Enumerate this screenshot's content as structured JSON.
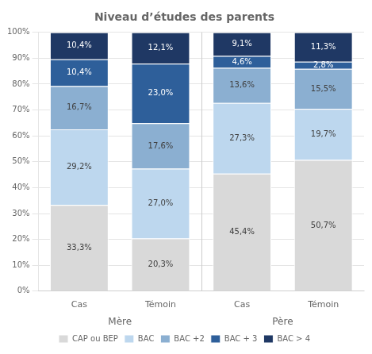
{
  "chart_data": {
    "type": "bar",
    "title": "Niveau d’études des parents",
    "categories": [
      "Cas",
      "Témoin",
      "Cas",
      "Témoin"
    ],
    "annotations": [
      "Mère",
      "Père"
    ],
    "series": [
      {
        "name": "CAP ou BEP",
        "color": "#d9d9d9",
        "values": [
          33.3,
          20.3,
          45.4,
          50.7
        ],
        "value_labels": [
          "33,3%",
          "20,3%",
          "45,4%",
          "50,7%"
        ]
      },
      {
        "name": "BAC",
        "color": "#bdd7ee",
        "values": [
          29.2,
          27.0,
          27.3,
          19.7
        ],
        "value_labels": [
          "29,2%",
          "27,0%",
          "27,3%",
          "19,7%"
        ]
      },
      {
        "name": "BAC +2",
        "color": "#8bafd1",
        "values": [
          16.7,
          17.6,
          13.6,
          15.5
        ],
        "value_labels": [
          "16,7%",
          "17,6%",
          "13,6%",
          "15,5%"
        ]
      },
      {
        "name": "BAC + 3",
        "color": "#2e5f9a",
        "values": [
          10.4,
          23.0,
          4.6,
          2.8
        ],
        "value_labels": [
          "10,4%",
          "23,0%",
          "4,6%",
          "2,8%"
        ]
      },
      {
        "name": "BAC > 4",
        "color": "#1f3864",
        "values": [
          10.4,
          12.1,
          9.1,
          11.3
        ],
        "value_labels": [
          "10,4%",
          "12,1%",
          "9,1%",
          "11,3%"
        ]
      }
    ],
    "stacked": true,
    "data_labels": true,
    "ylim": [
      0,
      100
    ],
    "yticks": [
      {
        "value": 0,
        "label": "0%"
      },
      {
        "value": 10,
        "label": "10%"
      },
      {
        "value": 20,
        "label": "20%"
      },
      {
        "value": 30,
        "label": "30%"
      },
      {
        "value": 40,
        "label": "40%"
      },
      {
        "value": 50,
        "label": "50%"
      },
      {
        "value": 60,
        "label": "60%"
      },
      {
        "value": 70,
        "label": "70%"
      },
      {
        "value": 80,
        "label": "80%"
      },
      {
        "value": 90,
        "label": "90%"
      },
      {
        "value": 100,
        "label": "100%"
      }
    ],
    "grid": true,
    "legend": "bottom"
  }
}
